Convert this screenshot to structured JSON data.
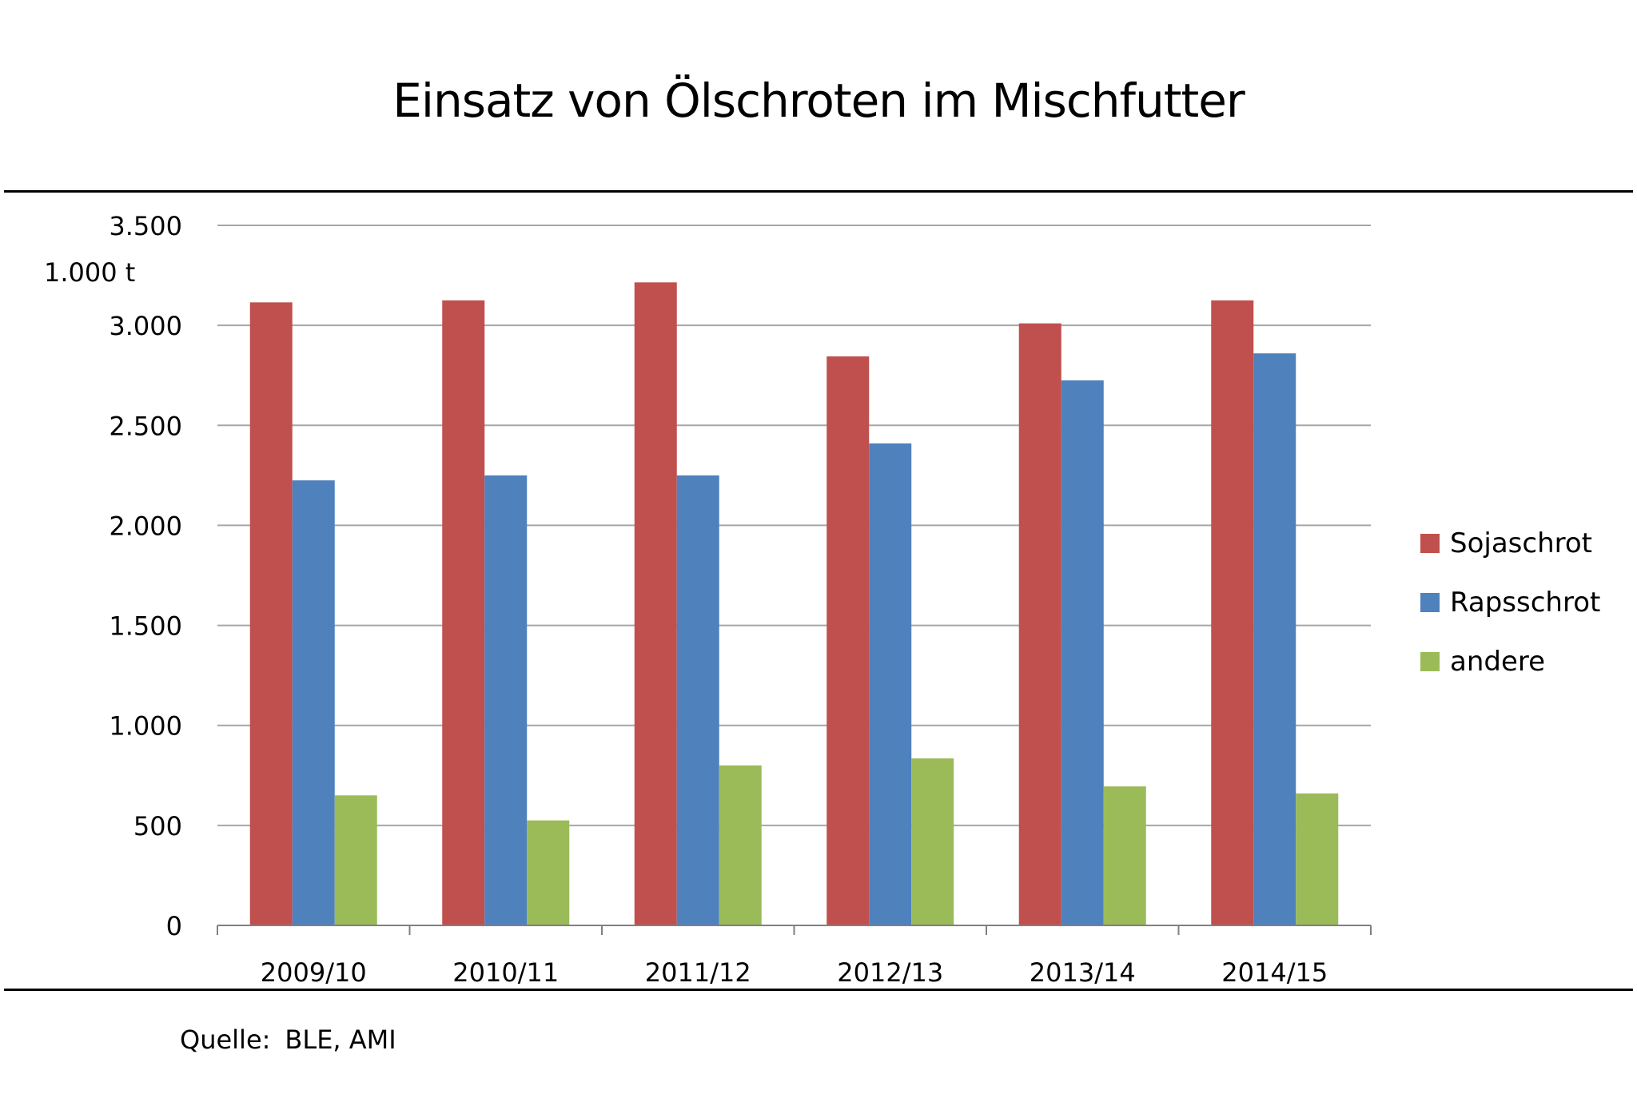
{
  "title": "Einsatz von Ölschroten im Mischfutter",
  "source_label": "Quelle:",
  "source_value": "BLE, AMI",
  "colors": {
    "Sojaschrot": "#c0504d",
    "Rapsschrot": "#4f81bd",
    "andere": "#9bbb59",
    "grid": "#a6a6a6",
    "axis": "#808080"
  },
  "chart_data": {
    "type": "bar",
    "title": "Einsatz von Ölschroten im Mischfutter",
    "ylabel": "1.000  t",
    "xlabel": "",
    "categories": [
      "2009/10",
      "2010/11",
      "2011/12",
      "2012/13",
      "2013/14",
      "2014/15"
    ],
    "series": [
      {
        "name": "Sojaschrot",
        "values": [
          3115,
          3125,
          3215,
          2845,
          3010,
          3125
        ]
      },
      {
        "name": "Rapsschrot",
        "values": [
          2225,
          2250,
          2250,
          2410,
          2725,
          2860
        ]
      },
      {
        "name": "andere",
        "values": [
          650,
          525,
          800,
          835,
          695,
          660
        ]
      }
    ],
    "ylim": [
      0,
      3500
    ],
    "yticks": [
      0,
      500,
      1000,
      1500,
      2000,
      2500,
      3000,
      3500
    ],
    "ytick_labels": [
      "0",
      "500",
      "1.000",
      "1.500",
      "2.000",
      "2.500",
      "3.000",
      "3.500"
    ],
    "grid": true,
    "legend_position": "right"
  }
}
